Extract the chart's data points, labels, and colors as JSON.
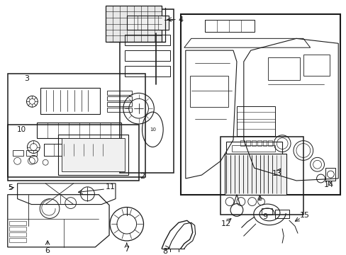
{
  "bg_color": "#ffffff",
  "line_color": "#1a1a1a",
  "fig_width": 4.89,
  "fig_height": 3.6,
  "dpi": 100,
  "gray_fill": "#e8e8e8",
  "light_gray": "#f0f0f0"
}
